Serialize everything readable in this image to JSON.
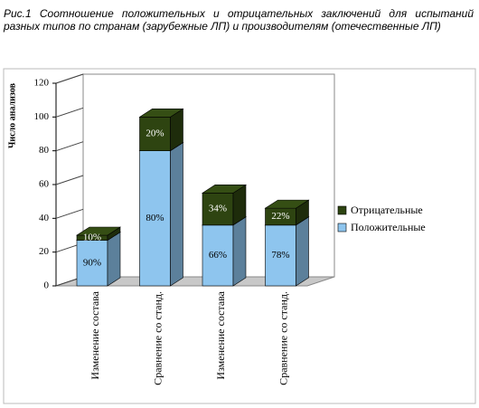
{
  "chart_data": {
    "type": "bar3d_stacked",
    "title": "Рис.1 Соотношение положительных и отрицательных заключений для испытаний разных типов по странам (зарубежные ЛП) и производителям (отечественные ЛП)",
    "ylabel": "Число анализов",
    "categories": [
      "Изменение состава",
      "Сравнение со станд.",
      "Изменение состава",
      "Сравнение со станд."
    ],
    "series": [
      {
        "name": "Положительные",
        "color": "#8ec5ee",
        "values": [
          27,
          80,
          36,
          36
        ],
        "labels": [
          "90%",
          "80%",
          "66%",
          "78%"
        ]
      },
      {
        "name": "Отрицательные",
        "color": "#2e4411",
        "values": [
          3,
          20,
          19,
          10
        ],
        "labels": [
          "10%",
          "20%",
          "34%",
          "22%"
        ]
      }
    ],
    "ylim": [
      0,
      120
    ],
    "yticks": [
      0,
      20,
      40,
      60,
      80,
      100,
      120
    ],
    "legend": "right"
  }
}
